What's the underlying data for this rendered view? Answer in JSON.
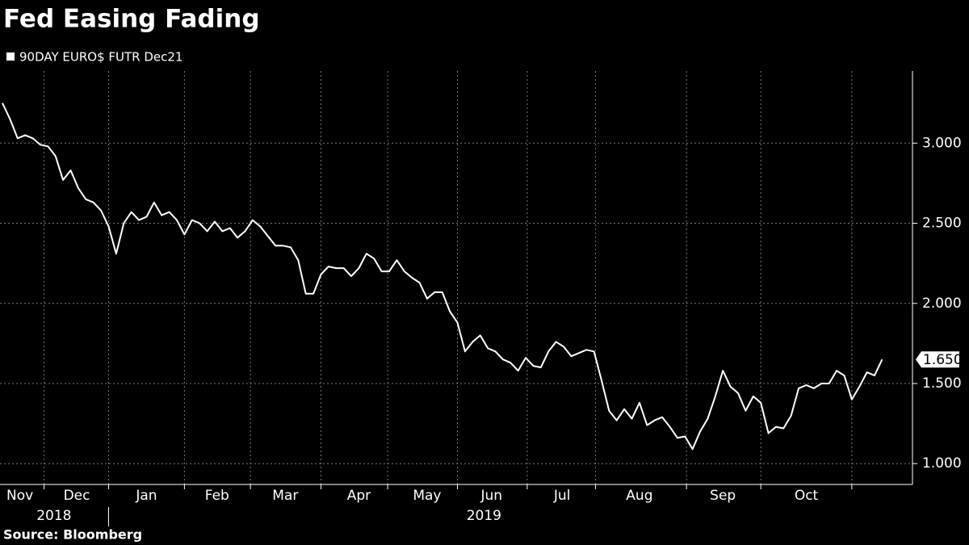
{
  "chart_data": {
    "type": "line",
    "title": "Fed Easing Fading",
    "source": "Source: Bloomberg",
    "series": [
      {
        "name": "90DAY EURO$ FUTR Dec21",
        "color": "#ffffff",
        "values": [
          3.25,
          3.15,
          3.03,
          3.05,
          3.03,
          2.99,
          2.98,
          2.92,
          2.77,
          2.83,
          2.72,
          2.65,
          2.63,
          2.58,
          2.48,
          2.31,
          2.5,
          2.57,
          2.52,
          2.54,
          2.63,
          2.55,
          2.57,
          2.52,
          2.43,
          2.52,
          2.5,
          2.45,
          2.51,
          2.45,
          2.47,
          2.41,
          2.45,
          2.52,
          2.48,
          2.42,
          2.36,
          2.36,
          2.35,
          2.27,
          2.06,
          2.06,
          2.18,
          2.23,
          2.22,
          2.22,
          2.17,
          2.22,
          2.31,
          2.28,
          2.2,
          2.2,
          2.27,
          2.2,
          2.16,
          2.13,
          2.03,
          2.07,
          2.07,
          1.95,
          1.88,
          1.7,
          1.76,
          1.8,
          1.72,
          1.7,
          1.65,
          1.63,
          1.58,
          1.66,
          1.61,
          1.6,
          1.7,
          1.76,
          1.73,
          1.67,
          1.69,
          1.71,
          1.7,
          1.52,
          1.33,
          1.27,
          1.34,
          1.28,
          1.38,
          1.24,
          1.27,
          1.29,
          1.23,
          1.16,
          1.17,
          1.09,
          1.2,
          1.28,
          1.42,
          1.58,
          1.48,
          1.44,
          1.33,
          1.42,
          1.38,
          1.19,
          1.23,
          1.22,
          1.3,
          1.47,
          1.49,
          1.47,
          1.5,
          1.5,
          1.58,
          1.55,
          1.4,
          1.48,
          1.57,
          1.55,
          1.65
        ],
        "value_labels": [
          null,
          null,
          null,
          null,
          null,
          null,
          null,
          null,
          null,
          null,
          null,
          null,
          null,
          null,
          null,
          null,
          null,
          null,
          null,
          null,
          null,
          null,
          null,
          null,
          null,
          null,
          null,
          null,
          null,
          null,
          null,
          null,
          null,
          null,
          null,
          null,
          null,
          null,
          null,
          null,
          null,
          null,
          null,
          null,
          null,
          null,
          null,
          null,
          null,
          null,
          null,
          null,
          null,
          null,
          null,
          null,
          null,
          null,
          null,
          null,
          null,
          null,
          null,
          null,
          null,
          null,
          null,
          null,
          null,
          null,
          null,
          null,
          null,
          null,
          null,
          null,
          null,
          null,
          null,
          null,
          null,
          null,
          null,
          null,
          null,
          null,
          null,
          null,
          null,
          null,
          null,
          null,
          null,
          null,
          null,
          null,
          null,
          null,
          null,
          null,
          null,
          null,
          null,
          null,
          null,
          null,
          null,
          null,
          null,
          null,
          null,
          null,
          null,
          null,
          null,
          null,
          "1.650"
        ]
      }
    ],
    "xlim": [
      0,
      120
    ],
    "xticks": [
      5.5,
      14,
      24,
      32.7,
      42,
      50.8,
      60,
      69.2,
      78.2,
      90.2,
      100,
      112
    ],
    "month_labels": [
      {
        "value": 2.3,
        "label": "Nov"
      },
      {
        "value": 9.8,
        "label": "Dec"
      },
      {
        "value": 19,
        "label": "Jan"
      },
      {
        "value": 28.3,
        "label": "Feb"
      },
      {
        "value": 37.3,
        "label": "Mar"
      },
      {
        "value": 47,
        "label": "Apr"
      },
      {
        "value": 56,
        "label": "May"
      },
      {
        "value": 64.5,
        "label": "Jun"
      },
      {
        "value": 73.8,
        "label": "Jul"
      },
      {
        "value": 84,
        "label": "Aug"
      },
      {
        "value": 95,
        "label": "Sep"
      },
      {
        "value": 106,
        "label": "Oct"
      }
    ],
    "year_labels": [
      {
        "value": 6.8,
        "label": "2018"
      },
      {
        "value": 63.5,
        "label": "2019"
      }
    ],
    "year_divider": 14,
    "ylim": [
      0.87,
      3.45
    ],
    "yticks": [
      {
        "value": 1.0,
        "label": "1.000"
      },
      {
        "value": 1.5,
        "label": "1.500"
      },
      {
        "value": 2.0,
        "label": "2.000"
      },
      {
        "value": 2.5,
        "label": "2.500"
      },
      {
        "value": 3.0,
        "label": "3.000"
      }
    ],
    "grid": true
  }
}
